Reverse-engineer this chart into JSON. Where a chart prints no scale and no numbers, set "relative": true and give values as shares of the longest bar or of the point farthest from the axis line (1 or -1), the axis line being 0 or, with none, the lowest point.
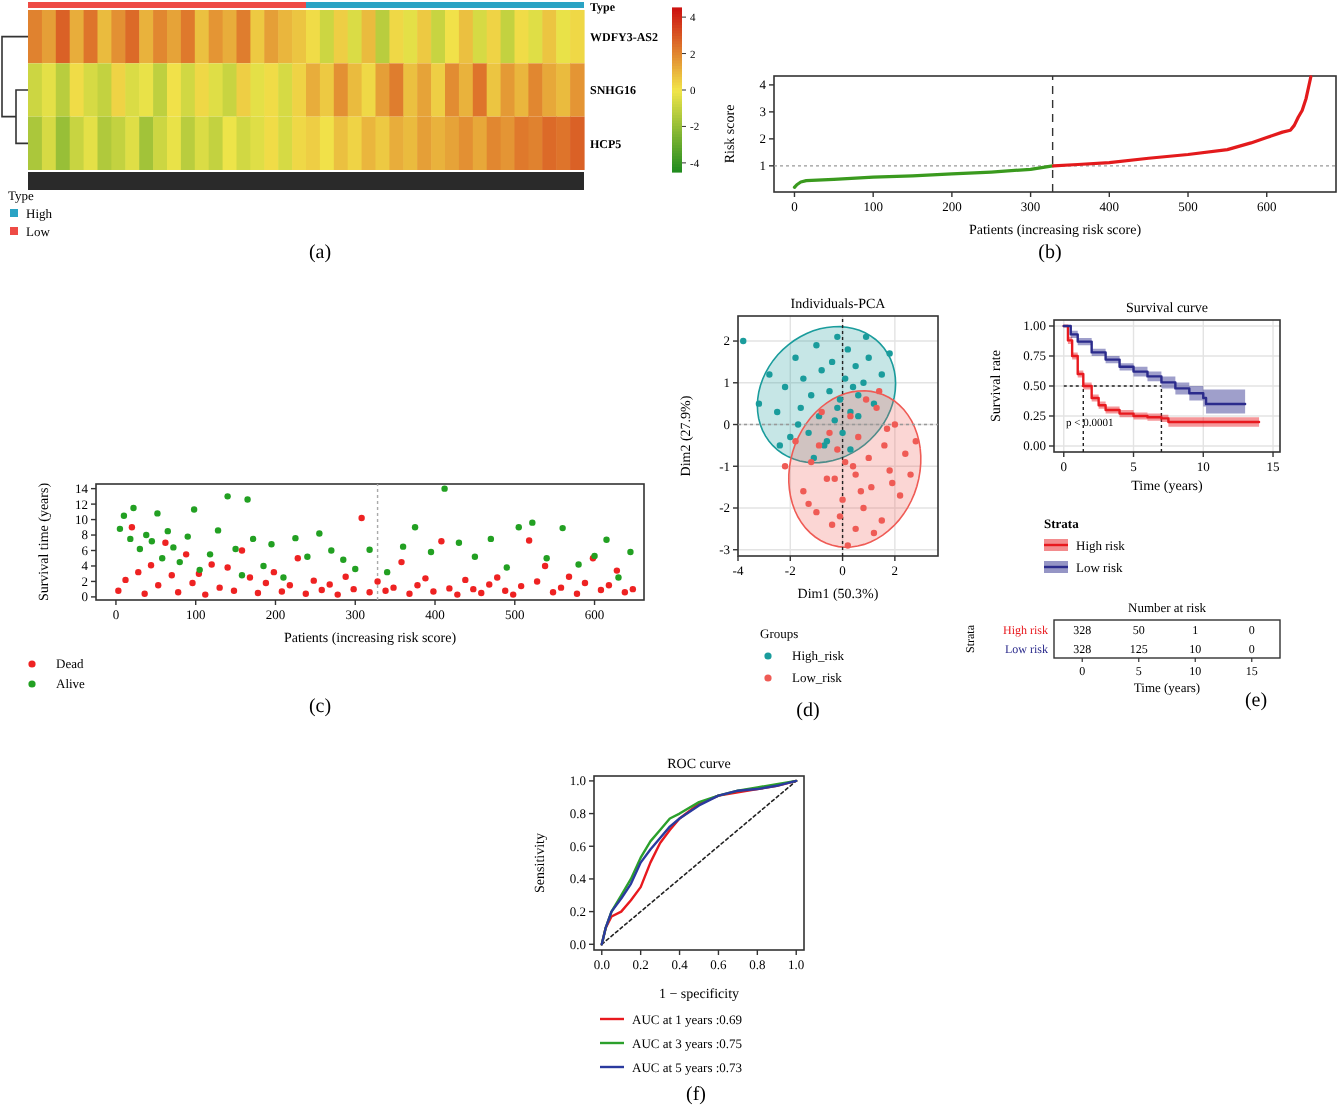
{
  "chart_data": [
    {
      "type": "bar",
      "orientation": "horizontal",
      "stacked": true,
      "relative": true,
      "categories": [
        "Type"
      ],
      "legend": "bottom left",
      "legend_title": "Type",
      "series": [
        {
          "name": "Low",
          "color": "#ee4b45",
          "values": [
            0.5
          ]
        },
        {
          "name": "High",
          "color": "#2aa3c4",
          "values": [
            0.5
          ]
        }
      ]
    },
    {
      "type": "heatmap",
      "categories": [
        null,
        null,
        null,
        null,
        null,
        null,
        null,
        null,
        null,
        null,
        null,
        null,
        null,
        null,
        null,
        null,
        null,
        null,
        null,
        null,
        null,
        null,
        null,
        null,
        null,
        null,
        null,
        null,
        null,
        null,
        null,
        null,
        null,
        null,
        null,
        null,
        null,
        null,
        null,
        null
      ],
      "y_categories": [
        "WDFY3-AS2",
        "SNHG16",
        "HCP5"
      ],
      "cells": [
        [
          2.1,
          1.5,
          2.8,
          1.2,
          2.4,
          0.9,
          1.8,
          2.6,
          1.1,
          2.0,
          1.4,
          2.3,
          0.8,
          1.7,
          1.2,
          2.2,
          0.6,
          1.5,
          1.0,
          0.7,
          0.2,
          -0.8,
          0.5,
          -0.5,
          0.9,
          -1.2,
          0.3,
          -0.3,
          0.6,
          -0.9,
          0.1,
          0.8,
          -0.6,
          0.4,
          -1.0,
          0.2,
          -0.4,
          0.7,
          -0.2,
          0.3
        ],
        [
          -0.8,
          -0.3,
          -1.2,
          0.2,
          -0.6,
          -1.0,
          0.4,
          -0.5,
          -0.2,
          -1.1,
          0.1,
          -0.7,
          0.3,
          -0.4,
          -0.9,
          0.5,
          -0.3,
          0.2,
          -0.6,
          0.4,
          1.2,
          0.6,
          1.8,
          0.9,
          0.3,
          1.5,
          2.2,
          0.8,
          1.4,
          0.5,
          1.9,
          1.1,
          2.4,
          0.7,
          1.6,
          1.0,
          2.0,
          1.3,
          0.9,
          1.7
        ],
        [
          -1.5,
          -0.6,
          -1.9,
          -0.9,
          -0.3,
          -1.4,
          -1.0,
          -0.4,
          -1.7,
          -0.8,
          -0.2,
          -1.2,
          -0.5,
          -1.0,
          -0.1,
          -0.7,
          -0.4,
          0.2,
          -0.6,
          0.3,
          0.5,
          0.1,
          0.8,
          0.4,
          1.0,
          0.6,
          1.2,
          0.9,
          1.5,
          1.1,
          1.4,
          1.8,
          1.3,
          2.0,
          1.7,
          2.3,
          2.1,
          2.6,
          2.4,
          2.8
        ]
      ],
      "clim": [
        -4.5,
        4.5
      ],
      "cticks": [
        -4,
        -2,
        0,
        2,
        4
      ],
      "colors": [
        "#1e8a1e",
        "#f2e64a",
        "#cc1010"
      ],
      "annotations": [
        "(a)"
      ]
    },
    {
      "type": "line",
      "xlabel": "Patients (increasing risk score)",
      "ylabel": "Risk score",
      "xlim": [
        -26,
        688
      ],
      "xticks": [
        0,
        100,
        200,
        300,
        400,
        500,
        600
      ],
      "ylim": [
        0.03,
        4.33
      ],
      "yticks": [
        1,
        2,
        3,
        4
      ],
      "series": [
        {
          "color": "#3a9a1e",
          "x": [
            0,
            3,
            8,
            15,
            50,
            100,
            150,
            200,
            250,
            300,
            328
          ],
          "values": [
            0.2,
            0.3,
            0.4,
            0.45,
            0.5,
            0.58,
            0.63,
            0.7,
            0.77,
            0.87,
            1.0
          ]
        },
        {
          "color": "#e31a1c",
          "x": [
            329,
            360,
            400,
            450,
            500,
            550,
            580,
            600,
            620,
            630,
            635,
            640,
            645,
            650,
            653,
            656
          ],
          "values": [
            1.0,
            1.05,
            1.12,
            1.28,
            1.42,
            1.6,
            1.85,
            2.05,
            2.25,
            2.32,
            2.5,
            2.8,
            3.05,
            3.5,
            3.9,
            4.3
          ]
        }
      ],
      "ref_lines": [
        {
          "axis": "x",
          "value": 328,
          "line_style": "dashed",
          "color": "#333333"
        },
        {
          "axis": "y",
          "value": 1,
          "line_style": "dotted",
          "color": "#999999"
        }
      ],
      "annotations": [
        "(b)"
      ]
    },
    {
      "type": "scatter",
      "xlabel": "Patients (increasing risk score)",
      "ylabel": "Survival time (years)",
      "xlim": [
        -25,
        662
      ],
      "xticks": [
        0,
        100,
        200,
        300,
        400,
        500,
        600
      ],
      "ylim": [
        -0.4,
        14.6
      ],
      "yticks": [
        0,
        2,
        4,
        6,
        8,
        10,
        12,
        14
      ],
      "marker": "circle",
      "legend": "bottom",
      "series": [
        {
          "name": "Dead",
          "color": "#ee2222",
          "x": [
            3,
            12,
            20,
            28,
            36,
            44,
            53,
            62,
            70,
            78,
            88,
            96,
            104,
            112,
            120,
            130,
            140,
            148,
            158,
            168,
            178,
            188,
            198,
            208,
            218,
            228,
            238,
            248,
            258,
            268,
            278,
            288,
            298,
            308,
            318,
            328,
            338,
            348,
            358,
            368,
            378,
            388,
            398,
            408,
            418,
            428,
            438,
            448,
            458,
            468,
            478,
            488,
            498,
            508,
            518,
            528,
            538,
            548,
            558,
            568,
            578,
            588,
            598,
            608,
            618,
            628,
            638,
            648
          ],
          "values": [
            0.8,
            2.2,
            9.0,
            3.2,
            0.4,
            4.1,
            1.5,
            7.0,
            2.8,
            0.6,
            5.5,
            1.8,
            3.0,
            0.3,
            4.2,
            1.2,
            3.8,
            0.8,
            6.0,
            2.5,
            0.5,
            1.8,
            3.2,
            0.7,
            1.5,
            5.0,
            0.4,
            2.1,
            0.9,
            1.6,
            0.3,
            2.6,
            1.0,
            10.2,
            0.6,
            2.0,
            0.8,
            1.2,
            4.5,
            0.4,
            1.5,
            2.4,
            0.7,
            7.2,
            1.1,
            0.3,
            2.2,
            1.0,
            0.5,
            1.6,
            2.5,
            0.8,
            0.3,
            1.4,
            7.3,
            2.0,
            4.0,
            0.6,
            1.2,
            2.6,
            0.4,
            1.8,
            5.0,
            0.9,
            1.5,
            3.4,
            0.6,
            1.0
          ]
        },
        {
          "name": "Alive",
          "color": "#22a022",
          "x": [
            5,
            10,
            18,
            22,
            30,
            38,
            45,
            52,
            58,
            65,
            72,
            80,
            90,
            98,
            105,
            118,
            128,
            140,
            150,
            158,
            165,
            172,
            185,
            195,
            210,
            225,
            240,
            255,
            270,
            285,
            300,
            318,
            340,
            360,
            375,
            395,
            412,
            430,
            450,
            470,
            490,
            505,
            522,
            540,
            560,
            580,
            600,
            615,
            630,
            645
          ],
          "values": [
            8.8,
            10.5,
            7.5,
            11.5,
            6.2,
            8.0,
            7.2,
            10.8,
            5.0,
            8.5,
            6.4,
            4.5,
            7.8,
            11.3,
            3.5,
            5.5,
            8.6,
            13.0,
            6.2,
            2.8,
            12.6,
            7.5,
            4.0,
            6.8,
            2.5,
            7.6,
            5.2,
            8.2,
            6.0,
            4.8,
            3.6,
            6.1,
            3.2,
            6.5,
            9.0,
            5.8,
            14.0,
            7.0,
            5.2,
            7.5,
            3.8,
            9.0,
            9.6,
            5.0,
            8.9,
            4.2,
            5.3,
            7.4,
            2.5,
            5.8
          ]
        }
      ],
      "ref_lines": [
        {
          "axis": "x",
          "value": 328,
          "line_style": "dotted",
          "color": "#aaaaaa"
        }
      ],
      "annotations": [
        "(c)"
      ]
    },
    {
      "type": "scatter",
      "title": "Individuals-PCA",
      "xlabel": "Dim1 (50.3%)",
      "ylabel": "Dim2 (27.9%)",
      "xlim": [
        -4.0,
        3.65
      ],
      "xticks": [
        -4,
        -2,
        0,
        2
      ],
      "ylim": [
        -3.15,
        2.6
      ],
      "yticks": [
        -3,
        -2,
        -1,
        0,
        1,
        2
      ],
      "grid": true,
      "marker": "circle",
      "legend": "bottom",
      "legend_title": "Groups",
      "series": [
        {
          "name": "High_risk",
          "color": "#1a9c9c",
          "x": [
            -3.8,
            -3.2,
            -2.8,
            -2.5,
            -2.2,
            -2.0,
            -1.8,
            -1.6,
            -1.5,
            -1.3,
            -1.2,
            -1.0,
            -0.9,
            -0.8,
            -0.7,
            -0.5,
            -0.4,
            -0.3,
            -0.2,
            -0.1,
            0.0,
            0.1,
            0.2,
            0.3,
            0.4,
            0.5,
            0.6,
            0.8,
            1.0,
            1.2,
            1.5,
            1.8,
            -1.1,
            -0.6,
            0.3,
            -2.4,
            -0.2,
            0.9,
            -1.7,
            0.6
          ],
          "values": [
            2.0,
            0.5,
            1.2,
            0.3,
            0.9,
            -0.3,
            1.6,
            0.4,
            1.1,
            -0.2,
            0.7,
            1.9,
            0.2,
            1.3,
            -0.5,
            0.8,
            1.5,
            0.1,
            2.1,
            0.6,
            -0.2,
            1.1,
            1.8,
            0.3,
            0.9,
            1.4,
            0.2,
            1.0,
            1.6,
            0.5,
            1.2,
            1.7,
            -0.8,
            -0.4,
            -0.6,
            -0.5,
            0.4,
            2.1,
            0.0,
            0.7
          ]
        },
        {
          "name": "Low_risk",
          "color": "#ef5b55",
          "x": [
            -2.2,
            -1.8,
            -1.5,
            -1.2,
            -1.0,
            -0.8,
            -0.6,
            -0.4,
            -0.2,
            0.0,
            0.2,
            0.3,
            0.5,
            0.6,
            0.8,
            1.0,
            1.1,
            1.3,
            1.5,
            1.6,
            1.8,
            2.0,
            2.2,
            2.4,
            2.6,
            -0.5,
            0.4,
            1.2,
            0.9,
            -1.3,
            0.1,
            1.9,
            -0.1,
            0.7,
            2.8,
            1.4,
            -0.9,
            0.5,
            1.7,
            -0.3
          ],
          "values": [
            -1.0,
            -0.4,
            -1.6,
            -0.9,
            -2.1,
            0.3,
            -1.3,
            -2.4,
            -0.6,
            -1.8,
            -2.9,
            0.2,
            -1.2,
            -0.3,
            -2.0,
            -0.8,
            -1.5,
            0.4,
            -2.3,
            -0.5,
            -1.1,
            0.0,
            -1.7,
            -0.7,
            -1.2,
            -0.2,
            -1.0,
            -2.6,
            0.6,
            -1.9,
            -0.9,
            -1.4,
            -2.2,
            -1.6,
            -0.4,
            0.8,
            -0.5,
            -2.5,
            -0.1,
            -1.3
          ]
        }
      ],
      "ref_lines": [
        {
          "axis": "x",
          "value": 0,
          "line_style": "dotted",
          "color": "#222222"
        },
        {
          "axis": "y",
          "value": 0,
          "line_style": "dotted",
          "color": "#999999"
        }
      ],
      "annotations": [
        "(d)"
      ]
    },
    {
      "type": "step",
      "title": "Survival curve",
      "xlabel": "Time (years)",
      "ylabel": "Survival rate",
      "xlim": [
        -0.7,
        15.5
      ],
      "xticks": [
        0,
        5,
        10,
        15
      ],
      "ylim": [
        -0.05,
        1.05
      ],
      "yticks": [
        {
          "value": 0,
          "label": "0.00"
        },
        {
          "value": 0.25,
          "label": "0.25"
        },
        {
          "value": 0.5,
          "label": "0.50"
        },
        {
          "value": 0.75,
          "label": "0.75"
        },
        {
          "value": 1,
          "label": "1.00"
        }
      ],
      "grid": true,
      "legend": "bottom",
      "legend_title": "Strata",
      "series": [
        {
          "name": "High risk",
          "color": "#e8191e",
          "x": [
            0,
            0.3,
            0.6,
            1,
            1.4,
            2,
            2.5,
            3,
            4,
            5,
            6,
            7,
            7.5,
            8,
            10,
            12,
            14
          ],
          "values": [
            1,
            0.88,
            0.75,
            0.6,
            0.5,
            0.4,
            0.34,
            0.3,
            0.27,
            0.25,
            0.24,
            0.23,
            0.2,
            0.2,
            0.2,
            0.2,
            0.2
          ],
          "lower": [
            1,
            0.85,
            0.72,
            0.57,
            0.47,
            0.37,
            0.31,
            0.27,
            0.24,
            0.22,
            0.21,
            0.2,
            0.16,
            0.16,
            0.16,
            0.16,
            0.16
          ],
          "upper": [
            1,
            0.91,
            0.78,
            0.63,
            0.53,
            0.43,
            0.37,
            0.33,
            0.3,
            0.28,
            0.27,
            0.26,
            0.24,
            0.24,
            0.24,
            0.24,
            0.24
          ]
        },
        {
          "name": "Low risk",
          "color": "#2b2b8c",
          "x": [
            0,
            0.5,
            1,
            2,
            3,
            4,
            5,
            6,
            7,
            8,
            9,
            10,
            10.2,
            11,
            12,
            13
          ],
          "values": [
            1,
            0.93,
            0.87,
            0.78,
            0.72,
            0.66,
            0.62,
            0.58,
            0.53,
            0.48,
            0.44,
            0.4,
            0.35,
            0.35,
            0.35,
            0.35
          ],
          "lower": [
            1,
            0.9,
            0.84,
            0.75,
            0.69,
            0.63,
            0.58,
            0.54,
            0.48,
            0.43,
            0.38,
            0.33,
            0.27,
            0.27,
            0.27,
            0.27
          ],
          "upper": [
            1,
            0.96,
            0.9,
            0.81,
            0.75,
            0.69,
            0.66,
            0.62,
            0.58,
            0.53,
            0.5,
            0.47,
            0.47,
            0.47,
            0.47,
            0.47
          ]
        }
      ],
      "ref_lines": [
        {
          "axis": "y",
          "value": 0.5,
          "line_style": "dotted",
          "color": "#222222"
        },
        {
          "axis": "x",
          "value": 1.4,
          "line_style": "dotted",
          "color": "#222222"
        },
        {
          "axis": "x",
          "value": 7,
          "line_style": "dotted",
          "color": "#222222"
        }
      ],
      "annotations": [
        "p < 0.0001",
        "(e)"
      ]
    },
    {
      "type": "heatmap",
      "title": "Number at risk",
      "xlabel": "Time (years)",
      "ylabel": "Strata",
      "categories": [
        "0",
        "5",
        "10",
        "15"
      ],
      "y_categories": [
        "High risk",
        "Low risk"
      ],
      "colors": [
        "#e8191e",
        "#2b2b8c"
      ],
      "data_labels": true,
      "cells": [
        [
          328,
          50,
          1,
          0
        ],
        [
          328,
          125,
          10,
          0
        ]
      ]
    },
    {
      "type": "line",
      "title": "ROC curve",
      "xlabel": "1 − specificity",
      "ylabel": "Sensitivity",
      "xlim": [
        -0.04,
        1.04
      ],
      "xticks": [
        {
          "value": 0,
          "label": "0.0"
        },
        0.2,
        0.4,
        0.6,
        0.8,
        {
          "value": 1,
          "label": "1.0"
        }
      ],
      "ylim": [
        -0.035,
        1.03
      ],
      "yticks": [
        {
          "value": 0,
          "label": "0.0"
        },
        0.2,
        0.4,
        0.6,
        0.8,
        {
          "value": 1,
          "label": "1.0"
        }
      ],
      "legend": "bottom",
      "series": [
        {
          "color": "#222222",
          "line_style": "dotted",
          "x": [
            0,
            1
          ],
          "values": [
            0,
            1
          ]
        },
        {
          "name": "AUC at 1 years :0.69",
          "color": "#e8191e",
          "x": [
            0,
            0.02,
            0.05,
            0.1,
            0.15,
            0.2,
            0.25,
            0.3,
            0.35,
            0.4,
            0.5,
            0.6,
            0.7,
            0.8,
            0.9,
            1.0
          ],
          "values": [
            0,
            0.1,
            0.17,
            0.2,
            0.27,
            0.35,
            0.5,
            0.62,
            0.7,
            0.77,
            0.86,
            0.91,
            0.93,
            0.95,
            0.97,
            1.0
          ]
        },
        {
          "name": "AUC at 3 years :0.75",
          "color": "#2ca02c",
          "x": [
            0,
            0.02,
            0.05,
            0.1,
            0.15,
            0.2,
            0.25,
            0.3,
            0.35,
            0.4,
            0.5,
            0.6,
            0.7,
            0.8,
            0.9,
            1.0
          ],
          "values": [
            0,
            0.1,
            0.2,
            0.3,
            0.4,
            0.53,
            0.63,
            0.7,
            0.77,
            0.8,
            0.87,
            0.91,
            0.94,
            0.96,
            0.98,
            1.0
          ]
        },
        {
          "name": "AUC at 5 years :0.73",
          "color": "#2a3a9e",
          "x": [
            0,
            0.02,
            0.05,
            0.1,
            0.15,
            0.2,
            0.25,
            0.3,
            0.35,
            0.4,
            0.5,
            0.6,
            0.7,
            0.8,
            0.9,
            1.0
          ],
          "values": [
            0,
            0.1,
            0.2,
            0.28,
            0.37,
            0.5,
            0.58,
            0.65,
            0.72,
            0.77,
            0.85,
            0.91,
            0.94,
            0.95,
            0.97,
            1.0
          ]
        }
      ],
      "annotations": [
        "(f)"
      ]
    }
  ]
}
